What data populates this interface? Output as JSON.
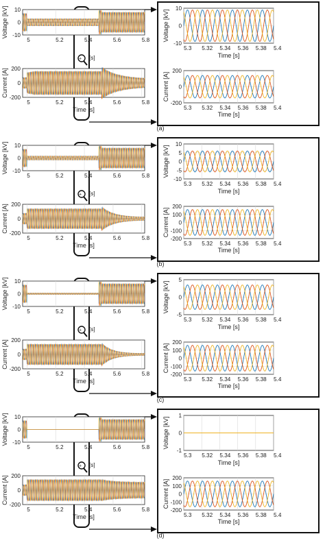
{
  "colors": {
    "phase_a": "#1f77b4",
    "phase_b": "#d95319",
    "phase_c": "#edb120",
    "grid": "#d9d9d9",
    "axis": "#262626"
  },
  "panels": [
    {
      "label": "(a)",
      "left_top": {
        "ylabel": "Voltage [kV]",
        "yticks": [
          "10",
          "0",
          "-10"
        ]
      },
      "left_bottom": {
        "ylabel": "Current [A]",
        "xlabel": "Time [s]",
        "yticks": [
          "200",
          "0",
          "-200"
        ],
        "xticks": [
          "5",
          "5.2",
          "5.4",
          "5.6",
          "5.8"
        ]
      },
      "right_top": {
        "ylabel": "Voltage [kV]",
        "xlabel": "Time [s]",
        "yticks": [
          "10",
          "0",
          "-10"
        ],
        "xticks": [
          "5.3",
          "5.32",
          "5.34",
          "5.36",
          "5.38",
          "5.4"
        ]
      },
      "right_bottom": {
        "ylabel": "Current [A]",
        "xlabel": "Time [s]",
        "yticks": [
          "200",
          "0",
          "-200"
        ],
        "xticks": [
          "5.3",
          "5.32",
          "5.34",
          "5.36",
          "5.38",
          "5.4"
        ]
      },
      "zoom_label": "[s]"
    },
    {
      "label": "(b)",
      "left_top": {
        "ylabel": "Voltage [kV]",
        "yticks": [
          "10",
          "0",
          "-10"
        ]
      },
      "left_bottom": {
        "ylabel": "Current [A]",
        "xlabel": "Time [s]",
        "yticks": [
          "200",
          "0",
          "-200"
        ],
        "xticks": [
          "5",
          "5.2",
          "5.4",
          "5.6",
          "5.8"
        ]
      },
      "right_top": {
        "ylabel": "Voltage [kV]",
        "xlabel": "Time [s]",
        "yticks": [
          "10",
          "5",
          "0",
          "-5",
          "-10"
        ],
        "xticks": [
          "5.3",
          "5.32",
          "5.34",
          "5.36",
          "5.38",
          "5.4"
        ]
      },
      "right_bottom": {
        "ylabel": "Current [A]",
        "xlabel": "Time [s]",
        "yticks": [
          "200",
          "100",
          "0",
          "-100",
          "-200"
        ],
        "xticks": [
          "5.3",
          "5.32",
          "5.34",
          "5.36",
          "5.38",
          "5.4"
        ]
      },
      "zoom_label": "[s]"
    },
    {
      "label": "(c)",
      "left_top": {
        "ylabel": "Voltage [kV]",
        "yticks": [
          "10",
          "0",
          "-10"
        ]
      },
      "left_bottom": {
        "ylabel": "Current [A]",
        "xlabel": "Time [s]",
        "yticks": [
          "200",
          "0",
          "-200"
        ],
        "xticks": [
          "5",
          "5.2",
          "5.4",
          "5.6",
          "5.8"
        ]
      },
      "right_top": {
        "ylabel": "Voltage [kV]",
        "xlabel": "Time [s]",
        "yticks": [
          "5",
          "0",
          "-5"
        ],
        "xticks": [
          "5.3",
          "5.32",
          "5.34",
          "5.36",
          "5.38",
          "5.4"
        ]
      },
      "right_bottom": {
        "ylabel": "Current [A]",
        "xlabel": "Time [s]",
        "yticks": [
          "200",
          "100",
          "0",
          "-100",
          "-200"
        ],
        "xticks": [
          "5.3",
          "5.32",
          "5.34",
          "5.36",
          "5.38",
          "5.4"
        ]
      },
      "zoom_label": "[s]"
    },
    {
      "label": "(d)",
      "left_top": {
        "ylabel": "Voltage [kV]",
        "yticks": [
          "10",
          "0",
          "-10"
        ]
      },
      "left_bottom": {
        "ylabel": "Current [A]",
        "xlabel": "Time [s]",
        "yticks": [
          "200",
          "0",
          "-200"
        ],
        "xticks": [
          "5",
          "5.2",
          "5.4",
          "5.6",
          "5.8"
        ]
      },
      "right_top": {
        "ylabel": "Voltage [kV]",
        "xlabel": "Time [s]",
        "yticks": [
          "1",
          "0",
          "-1"
        ],
        "xticks": [
          "5.3",
          "5.32",
          "5.34",
          "5.36",
          "5.38",
          "5.4"
        ]
      },
      "right_bottom": {
        "ylabel": "Current [A]",
        "xlabel": "Time [s]",
        "yticks": [
          "200",
          "100",
          "0",
          "-100",
          "-200"
        ],
        "xticks": [
          "5.3",
          "5.32",
          "5.34",
          "5.36",
          "5.38",
          "5.4"
        ]
      },
      "zoom_label": "[s]"
    }
  ],
  "chart_data": [
    {
      "type": "line",
      "panel": "(a)",
      "role": "overview voltage",
      "x_range": [
        4.97,
        5.82
      ],
      "ylim": [
        -10,
        10
      ],
      "description_values": {
        "pre_fault_amplitude_kV": 7,
        "fault_window_s": [
          5.0,
          5.5
        ],
        "fault_amplitude_kV": 3,
        "post_fault_amplitude_kV": 8
      }
    },
    {
      "type": "line",
      "panel": "(a)",
      "role": "overview current",
      "x_range": [
        4.97,
        5.82
      ],
      "ylim": [
        -200,
        200
      ],
      "description_values": {
        "pre_fault_amplitude_A": 80,
        "fault_amplitude_A": 170,
        "post_fault_decay_to_A": 60
      }
    },
    {
      "type": "line",
      "panel": "(a)",
      "role": "zoom voltage",
      "x_range": [
        5.3,
        5.4
      ],
      "ylim": [
        -10,
        10
      ],
      "amplitude_kV": 9,
      "frequency_hz": 60,
      "series": [
        {
          "phase_deg": 0
        },
        {
          "phase_deg": -120
        },
        {
          "phase_deg": 120
        }
      ]
    },
    {
      "type": "line",
      "panel": "(a)",
      "role": "zoom current",
      "x_range": [
        5.3,
        5.4
      ],
      "ylim": [
        -200,
        200
      ],
      "amplitude_A": 140,
      "frequency_hz": 60,
      "series": [
        {
          "phase_deg": 0
        },
        {
          "phase_deg": -120
        },
        {
          "phase_deg": 120
        }
      ]
    },
    {
      "type": "line",
      "panel": "(b)",
      "role": "overview voltage",
      "x_range": [
        4.97,
        5.82
      ],
      "ylim": [
        -10,
        10
      ],
      "description_values": {
        "pre_fault_amplitude_kV": 7,
        "fault_amplitude_kV": 2,
        "post_fault_amplitude_kV": 8
      }
    },
    {
      "type": "line",
      "panel": "(b)",
      "role": "overview current",
      "x_range": [
        4.97,
        5.82
      ],
      "ylim": [
        -200,
        200
      ],
      "description_values": {
        "pre_fault_amplitude_A": 80,
        "fault_amplitude_A": 150,
        "post_fault_decay_to_A": 30
      }
    },
    {
      "type": "line",
      "panel": "(b)",
      "role": "zoom voltage",
      "x_range": [
        5.3,
        5.4
      ],
      "ylim": [
        -10,
        10
      ],
      "amplitude_kV": 6,
      "frequency_hz": 60,
      "series": [
        {
          "phase_deg": 0
        },
        {
          "phase_deg": -120
        },
        {
          "phase_deg": 120
        }
      ]
    },
    {
      "type": "line",
      "panel": "(b)",
      "role": "zoom current",
      "x_range": [
        5.3,
        5.4
      ],
      "ylim": [
        -200,
        200
      ],
      "amplitude_A": 160,
      "frequency_hz": 60,
      "series": [
        {
          "phase_deg": 0
        },
        {
          "phase_deg": -120
        },
        {
          "phase_deg": 120
        }
      ]
    },
    {
      "type": "line",
      "panel": "(c)",
      "role": "overview voltage",
      "x_range": [
        4.97,
        5.82
      ],
      "ylim": [
        -10,
        10
      ],
      "description_values": {
        "pre_fault_amplitude_kV": 7,
        "fault_amplitude_kV": 1,
        "post_fault_amplitude_kV": 8
      }
    },
    {
      "type": "line",
      "panel": "(c)",
      "role": "overview current",
      "x_range": [
        4.97,
        5.82
      ],
      "ylim": [
        -200,
        200
      ],
      "description_values": {
        "pre_fault_amplitude_A": 80,
        "fault_amplitude_A": 160,
        "post_fault_decay_to_A": 20
      }
    },
    {
      "type": "line",
      "panel": "(c)",
      "role": "zoom voltage",
      "x_range": [
        5.3,
        5.4
      ],
      "ylim": [
        -5,
        5
      ],
      "amplitude_kV": 3.5,
      "frequency_hz": 60,
      "series": [
        {
          "phase_deg": 0
        },
        {
          "phase_deg": -120
        },
        {
          "phase_deg": 120
        }
      ]
    },
    {
      "type": "line",
      "panel": "(c)",
      "role": "zoom current",
      "x_range": [
        5.3,
        5.4
      ],
      "ylim": [
        -200,
        200
      ],
      "amplitude_A": 160,
      "frequency_hz": 60,
      "series": [
        {
          "phase_deg": 0
        },
        {
          "phase_deg": -120
        },
        {
          "phase_deg": 120
        }
      ]
    },
    {
      "type": "line",
      "panel": "(d)",
      "role": "overview voltage",
      "x_range": [
        4.97,
        5.82
      ],
      "ylim": [
        -10,
        10
      ],
      "description_values": {
        "pre_fault_amplitude_kV": 7,
        "fault_amplitude_kV": 0,
        "post_fault_amplitude_kV": 8
      }
    },
    {
      "type": "line",
      "panel": "(d)",
      "role": "overview current",
      "x_range": [
        4.97,
        5.82
      ],
      "ylim": [
        -200,
        200
      ],
      "description_values": {
        "pre_fault_amplitude_A": 80,
        "fault_amplitude_A": 160,
        "post_fault_amplitude_A": 110
      }
    },
    {
      "type": "line",
      "panel": "(d)",
      "role": "zoom voltage",
      "x_range": [
        5.3,
        5.4
      ],
      "ylim": [
        -1,
        1
      ],
      "amplitude_kV": 0,
      "frequency_hz": 60,
      "series": [
        {
          "phase_deg": 0
        },
        {
          "phase_deg": -120
        },
        {
          "phase_deg": 120
        }
      ]
    },
    {
      "type": "line",
      "panel": "(d)",
      "role": "zoom current",
      "x_range": [
        5.3,
        5.4
      ],
      "ylim": [
        -200,
        200
      ],
      "amplitude_A": 160,
      "frequency_hz": 60,
      "series": [
        {
          "phase_deg": 0
        },
        {
          "phase_deg": -120
        },
        {
          "phase_deg": 120
        }
      ]
    }
  ]
}
